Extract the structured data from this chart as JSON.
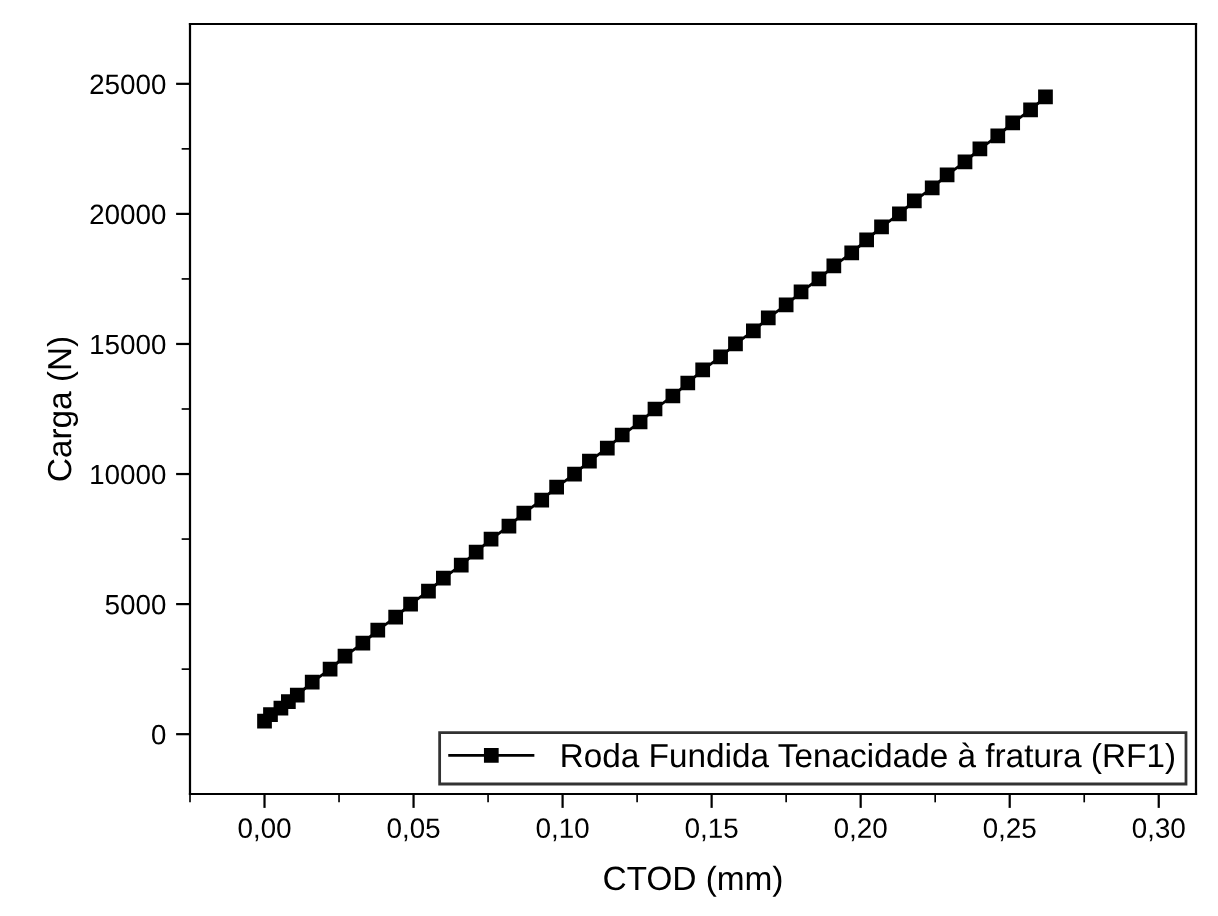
{
  "chart_data": {
    "type": "line",
    "xlabel": "CTOD (mm)",
    "ylabel": "Carga (N)",
    "xlim": [
      -0.025,
      0.3125
    ],
    "ylim": [
      -2300,
      27300
    ],
    "xticks": [
      {
        "value": 0,
        "label": "0,00"
      },
      {
        "value": 0.05,
        "label": "0,05"
      },
      {
        "value": 0.1,
        "label": "0,10"
      },
      {
        "value": 0.15,
        "label": "0,15"
      },
      {
        "value": 0.2,
        "label": "0,20"
      },
      {
        "value": 0.25,
        "label": "0,25"
      },
      {
        "value": 0.3,
        "label": "0,30"
      }
    ],
    "yticks": [
      0,
      5000,
      10000,
      15000,
      20000,
      25000
    ],
    "legend": "bottom right",
    "marker": "square",
    "line_style": "solid",
    "grid": false,
    "series": [
      {
        "name": "Roda Fundida Tenacidade à fratura (RF1)",
        "color": "#000000",
        "x": [
          0,
          0.002,
          0.0055,
          0.008,
          0.011,
          0.016,
          0.022,
          0.027,
          0.033,
          0.038,
          0.044,
          0.049,
          0.055,
          0.06,
          0.066,
          0.071,
          0.076,
          0.082,
          0.087,
          0.093,
          0.098,
          0.104,
          0.109,
          0.115,
          0.12,
          0.126,
          0.131,
          0.137,
          0.142,
          0.147,
          0.153,
          0.158,
          0.164,
          0.169,
          0.175,
          0.18,
          0.186,
          0.191,
          0.197,
          0.202,
          0.207,
          0.213,
          0.218,
          0.224,
          0.229,
          0.235,
          0.24,
          0.246,
          0.251,
          0.257,
          0.262
        ],
        "values": [
          500,
          750,
          1000,
          1250,
          1500,
          2000,
          2500,
          3000,
          3500,
          4000,
          4500,
          5000,
          5500,
          6000,
          6500,
          7000,
          7500,
          8000,
          8500,
          9000,
          9500,
          10000,
          10500,
          11000,
          11500,
          12000,
          12500,
          13000,
          13500,
          14000,
          14500,
          15000,
          15500,
          16000,
          16500,
          17000,
          17500,
          18000,
          18500,
          19000,
          19500,
          20000,
          20500,
          21000,
          21500,
          22000,
          22500,
          23000,
          23500,
          24000,
          24500
        ]
      }
    ]
  }
}
